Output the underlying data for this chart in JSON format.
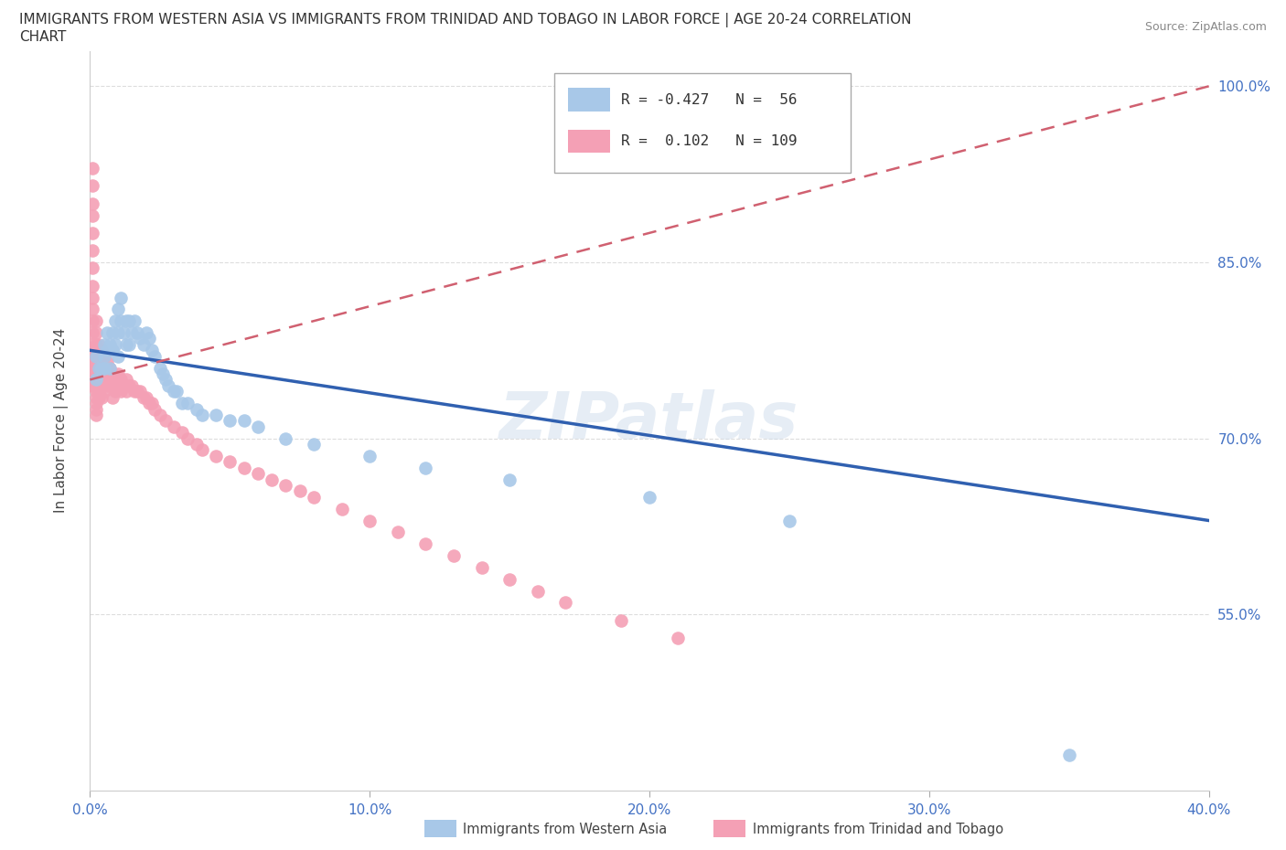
{
  "title_line1": "IMMIGRANTS FROM WESTERN ASIA VS IMMIGRANTS FROM TRINIDAD AND TOBAGO IN LABOR FORCE | AGE 20-24 CORRELATION",
  "title_line2": "CHART",
  "source_text": "Source: ZipAtlas.com",
  "ylabel": "In Labor Force | Age 20-24",
  "xmin": 0.0,
  "xmax": 0.4,
  "ymin": 0.4,
  "ymax": 1.03,
  "yticks": [
    0.55,
    0.7,
    0.85,
    1.0
  ],
  "ytick_labels": [
    "55.0%",
    "70.0%",
    "85.0%",
    "100.0%"
  ],
  "xticks": [
    0.0,
    0.1,
    0.2,
    0.3,
    0.4
  ],
  "xtick_labels": [
    "0.0%",
    "10.0%",
    "20.0%",
    "30.0%",
    "40.0%"
  ],
  "legend1_R": "-0.427",
  "legend1_N": "56",
  "legend2_R": "0.102",
  "legend2_N": "109",
  "color_blue": "#a8c8e8",
  "color_pink": "#f4a0b5",
  "trendline_blue_color": "#3060b0",
  "trendline_pink_color": "#d06070",
  "watermark": "ZIPatlas",
  "blue_scatter_x": [
    0.002,
    0.002,
    0.003,
    0.004,
    0.005,
    0.005,
    0.005,
    0.006,
    0.006,
    0.007,
    0.007,
    0.008,
    0.008,
    0.009,
    0.009,
    0.01,
    0.01,
    0.01,
    0.011,
    0.011,
    0.012,
    0.013,
    0.013,
    0.014,
    0.014,
    0.015,
    0.016,
    0.017,
    0.018,
    0.019,
    0.02,
    0.021,
    0.022,
    0.023,
    0.025,
    0.026,
    0.027,
    0.028,
    0.03,
    0.031,
    0.033,
    0.035,
    0.038,
    0.04,
    0.045,
    0.05,
    0.055,
    0.06,
    0.07,
    0.08,
    0.1,
    0.12,
    0.15,
    0.2,
    0.25,
    0.35
  ],
  "blue_scatter_y": [
    0.77,
    0.75,
    0.76,
    0.76,
    0.78,
    0.77,
    0.76,
    0.79,
    0.775,
    0.78,
    0.76,
    0.79,
    0.775,
    0.8,
    0.78,
    0.81,
    0.79,
    0.77,
    0.82,
    0.8,
    0.79,
    0.8,
    0.78,
    0.8,
    0.78,
    0.79,
    0.8,
    0.79,
    0.785,
    0.78,
    0.79,
    0.785,
    0.775,
    0.77,
    0.76,
    0.755,
    0.75,
    0.745,
    0.74,
    0.74,
    0.73,
    0.73,
    0.725,
    0.72,
    0.72,
    0.715,
    0.715,
    0.71,
    0.7,
    0.695,
    0.685,
    0.675,
    0.665,
    0.65,
    0.63,
    0.43
  ],
  "pink_scatter_x": [
    0.001,
    0.001,
    0.001,
    0.001,
    0.001,
    0.001,
    0.001,
    0.001,
    0.001,
    0.001,
    0.001,
    0.001,
    0.001,
    0.001,
    0.001,
    0.001,
    0.001,
    0.001,
    0.001,
    0.001,
    0.002,
    0.002,
    0.002,
    0.002,
    0.002,
    0.002,
    0.002,
    0.002,
    0.002,
    0.002,
    0.002,
    0.002,
    0.002,
    0.002,
    0.002,
    0.003,
    0.003,
    0.003,
    0.003,
    0.003,
    0.003,
    0.003,
    0.003,
    0.003,
    0.003,
    0.004,
    0.004,
    0.004,
    0.004,
    0.004,
    0.004,
    0.004,
    0.005,
    0.005,
    0.005,
    0.005,
    0.006,
    0.006,
    0.006,
    0.007,
    0.007,
    0.008,
    0.008,
    0.008,
    0.009,
    0.009,
    0.01,
    0.01,
    0.011,
    0.011,
    0.012,
    0.013,
    0.013,
    0.014,
    0.015,
    0.016,
    0.017,
    0.018,
    0.019,
    0.02,
    0.021,
    0.022,
    0.023,
    0.025,
    0.027,
    0.03,
    0.033,
    0.035,
    0.038,
    0.04,
    0.045,
    0.05,
    0.055,
    0.06,
    0.065,
    0.07,
    0.075,
    0.08,
    0.09,
    0.1,
    0.11,
    0.12,
    0.13,
    0.14,
    0.15,
    0.16,
    0.17,
    0.19,
    0.21
  ],
  "pink_scatter_y": [
    0.93,
    0.915,
    0.9,
    0.89,
    0.875,
    0.86,
    0.845,
    0.83,
    0.82,
    0.81,
    0.8,
    0.79,
    0.78,
    0.775,
    0.77,
    0.765,
    0.76,
    0.755,
    0.75,
    0.745,
    0.8,
    0.79,
    0.78,
    0.775,
    0.77,
    0.765,
    0.76,
    0.755,
    0.75,
    0.745,
    0.74,
    0.735,
    0.73,
    0.725,
    0.72,
    0.78,
    0.775,
    0.77,
    0.765,
    0.76,
    0.755,
    0.75,
    0.745,
    0.74,
    0.735,
    0.775,
    0.77,
    0.76,
    0.755,
    0.75,
    0.745,
    0.735,
    0.77,
    0.76,
    0.75,
    0.74,
    0.765,
    0.755,
    0.745,
    0.76,
    0.75,
    0.755,
    0.745,
    0.735,
    0.75,
    0.74,
    0.755,
    0.745,
    0.75,
    0.74,
    0.745,
    0.75,
    0.74,
    0.745,
    0.745,
    0.74,
    0.74,
    0.74,
    0.735,
    0.735,
    0.73,
    0.73,
    0.725,
    0.72,
    0.715,
    0.71,
    0.705,
    0.7,
    0.695,
    0.69,
    0.685,
    0.68,
    0.675,
    0.67,
    0.665,
    0.66,
    0.655,
    0.65,
    0.64,
    0.63,
    0.62,
    0.61,
    0.6,
    0.59,
    0.58,
    0.57,
    0.56,
    0.545,
    0.53
  ],
  "trendline_blue_x0": 0.0,
  "trendline_blue_y0": 0.775,
  "trendline_blue_x1": 0.4,
  "trendline_blue_y1": 0.63,
  "trendline_pink_x0": 0.0,
  "trendline_pink_y0": 0.75,
  "trendline_pink_x1": 0.4,
  "trendline_pink_y1": 1.0
}
